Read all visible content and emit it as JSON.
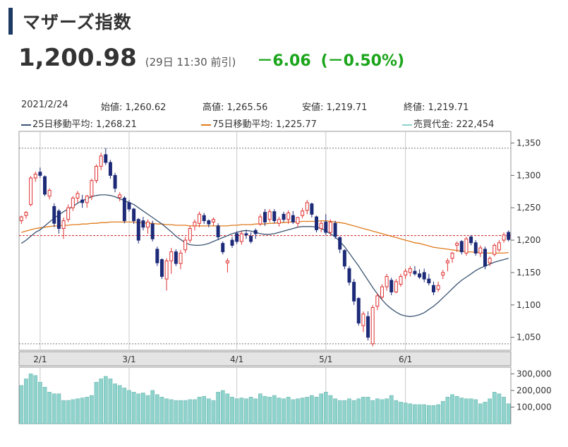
{
  "header": {
    "title": "マザーズ指数",
    "price": "1,200.98",
    "time_note": "(29日 11:30 前引)",
    "change": "－6.06",
    "change_pct": "(－0.50%)"
  },
  "info": {
    "date": "2021/2/24",
    "open_label": "始値: 1,260.62",
    "high_label": "高値: 1,265.56",
    "low_label": "安値: 1,219.71",
    "close_label": "終値: 1,219.71",
    "ma25_label": "25日移動平均: 1,268.21",
    "ma75_label": "75日移動平均: 1,225.77",
    "volume_label": "売買代金: 222,454"
  },
  "colors": {
    "up": "#e03030",
    "down": "#1d2a78",
    "ma25": "#3b5573",
    "ma75": "#e07b1c",
    "volume": "#8fd3cc",
    "volume_stroke": "#5bb0a8",
    "current_line": "#d02020",
    "grid": "#c8c8c8",
    "axis_band": "#e4e4e4"
  },
  "chart_data": {
    "type": "candlestick",
    "price_axis": {
      "min": 1030,
      "max": 1368,
      "ticks": [
        1050,
        1100,
        1150,
        1200,
        1250,
        1300,
        1350
      ],
      "tick_labels": [
        "1,050",
        "1,100",
        "1,150",
        "1,200",
        "1,250",
        "1,300",
        "1,350"
      ]
    },
    "volume_axis": {
      "min": 0,
      "max": 340000,
      "ticks": [
        100000,
        200000,
        300000
      ],
      "tick_labels": [
        "100,000",
        "200,000",
        "300,000"
      ]
    },
    "x_labels": [
      {
        "label": "2/1",
        "index": 4
      },
      {
        "label": "3/1",
        "index": 23
      },
      {
        "label": "4/1",
        "index": 46
      },
      {
        "label": "5/1",
        "index": 65
      },
      {
        "label": "6/1",
        "index": 82
      }
    ],
    "reference_lines": {
      "high": 1342,
      "low": 1040,
      "current": 1207
    },
    "candles": [
      [
        1230,
        1238,
        1225,
        1236
      ],
      [
        1238,
        1245,
        1233,
        1243
      ],
      [
        1255,
        1299,
        1252,
        1296
      ],
      [
        1296,
        1306,
        1290,
        1302
      ],
      [
        1305,
        1312,
        1296,
        1300
      ],
      [
        1298,
        1300,
        1268,
        1271
      ],
      [
        1268,
        1280,
        1263,
        1277
      ],
      [
        1252,
        1257,
        1220,
        1226
      ],
      [
        1245,
        1248,
        1210,
        1218
      ],
      [
        1218,
        1235,
        1202,
        1230
      ],
      [
        1232,
        1255,
        1228,
        1250
      ],
      [
        1250,
        1268,
        1245,
        1265
      ],
      [
        1265,
        1276,
        1258,
        1272
      ],
      [
        1262,
        1270,
        1250,
        1258
      ],
      [
        1258,
        1270,
        1250,
        1268
      ],
      [
        1268,
        1295,
        1262,
        1292
      ],
      [
        1292,
        1317,
        1288,
        1314
      ],
      [
        1314,
        1335,
        1308,
        1330
      ],
      [
        1332,
        1342,
        1316,
        1320
      ],
      [
        1320,
        1324,
        1295,
        1300
      ],
      [
        1300,
        1304,
        1274,
        1280
      ],
      [
        1266,
        1274,
        1260,
        1270
      ],
      [
        1265,
        1268,
        1226,
        1230
      ],
      [
        1258,
        1262,
        1244,
        1248
      ],
      [
        1248,
        1250,
        1225,
        1230
      ],
      [
        1232,
        1234,
        1195,
        1200
      ],
      [
        1230,
        1236,
        1215,
        1220
      ],
      [
        1220,
        1232,
        1210,
        1228
      ],
      [
        1225,
        1230,
        1198,
        1202
      ],
      [
        1186,
        1190,
        1160,
        1165
      ],
      [
        1170,
        1172,
        1140,
        1144
      ],
      [
        1140,
        1172,
        1122,
        1168
      ],
      [
        1168,
        1188,
        1148,
        1182
      ],
      [
        1182,
        1186,
        1160,
        1164
      ],
      [
        1164,
        1185,
        1155,
        1180
      ],
      [
        1185,
        1205,
        1180,
        1200
      ],
      [
        1200,
        1222,
        1196,
        1218
      ],
      [
        1222,
        1232,
        1215,
        1228
      ],
      [
        1226,
        1244,
        1220,
        1240
      ],
      [
        1238,
        1242,
        1225,
        1230
      ],
      [
        1230,
        1232,
        1220,
        1225
      ],
      [
        1228,
        1235,
        1222,
        1232
      ],
      [
        1222,
        1226,
        1200,
        1205
      ],
      [
        1195,
        1198,
        1178,
        1182
      ],
      [
        1165,
        1172,
        1150,
        1168
      ],
      [
        1200,
        1205,
        1188,
        1192
      ],
      [
        1210,
        1214,
        1194,
        1198
      ],
      [
        1198,
        1214,
        1193,
        1210
      ],
      [
        1210,
        1216,
        1202,
        1208
      ],
      [
        1206,
        1212,
        1195,
        1198
      ],
      [
        1215,
        1218,
        1202,
        1210
      ],
      [
        1225,
        1240,
        1222,
        1236
      ],
      [
        1243,
        1248,
        1222,
        1228
      ],
      [
        1232,
        1248,
        1228,
        1244
      ],
      [
        1244,
        1248,
        1226,
        1230
      ],
      [
        1226,
        1236,
        1221,
        1232
      ],
      [
        1240,
        1244,
        1228,
        1232
      ],
      [
        1232,
        1246,
        1225,
        1242
      ],
      [
        1238,
        1245,
        1225,
        1228
      ],
      [
        1226,
        1236,
        1220,
        1235
      ],
      [
        1238,
        1250,
        1234,
        1245
      ],
      [
        1246,
        1262,
        1240,
        1258
      ],
      [
        1256,
        1258,
        1235,
        1240
      ],
      [
        1236,
        1238,
        1212,
        1216
      ],
      [
        1218,
        1230,
        1212,
        1226
      ],
      [
        1228,
        1240,
        1208,
        1212
      ],
      [
        1212,
        1232,
        1208,
        1228
      ],
      [
        1226,
        1230,
        1202,
        1206
      ],
      [
        1204,
        1206,
        1180,
        1186
      ],
      [
        1184,
        1186,
        1155,
        1160
      ],
      [
        1156,
        1160,
        1130,
        1135
      ],
      [
        1135,
        1140,
        1100,
        1106
      ],
      [
        1110,
        1112,
        1068,
        1072
      ],
      [
        1068,
        1090,
        1058,
        1086
      ],
      [
        1082,
        1090,
        1045,
        1050
      ],
      [
        1040,
        1100,
        1036,
        1096
      ],
      [
        1098,
        1118,
        1092,
        1114
      ],
      [
        1112,
        1132,
        1108,
        1128
      ],
      [
        1128,
        1148,
        1122,
        1144
      ],
      [
        1138,
        1142,
        1115,
        1120
      ],
      [
        1120,
        1140,
        1118,
        1136
      ],
      [
        1132,
        1148,
        1128,
        1144
      ],
      [
        1146,
        1156,
        1140,
        1152
      ],
      [
        1150,
        1160,
        1144,
        1156
      ],
      [
        1152,
        1160,
        1145,
        1148
      ],
      [
        1148,
        1155,
        1140,
        1143
      ],
      [
        1150,
        1156,
        1135,
        1140
      ],
      [
        1140,
        1148,
        1130,
        1134
      ],
      [
        1130,
        1136,
        1115,
        1120
      ],
      [
        1124,
        1136,
        1120,
        1130
      ],
      [
        1146,
        1154,
        1140,
        1150
      ],
      [
        1165,
        1172,
        1152,
        1168
      ],
      [
        1172,
        1182,
        1165,
        1180
      ],
      [
        1192,
        1198,
        1182,
        1195
      ],
      [
        1198,
        1200,
        1178,
        1182
      ],
      [
        1180,
        1205,
        1176,
        1202
      ],
      [
        1205,
        1208,
        1192,
        1196
      ],
      [
        1196,
        1200,
        1176,
        1180
      ],
      [
        1180,
        1192,
        1174,
        1188
      ],
      [
        1186,
        1190,
        1155,
        1160
      ],
      [
        1165,
        1175,
        1160,
        1172
      ],
      [
        1178,
        1195,
        1175,
        1192
      ],
      [
        1185,
        1200,
        1182,
        1196
      ],
      [
        1200,
        1212,
        1196,
        1208
      ],
      [
        1212,
        1215,
        1198,
        1201
      ]
    ],
    "ma25": [
      1195,
      1200,
      1206,
      1212,
      1216,
      1222,
      1228,
      1234,
      1239,
      1244,
      1248,
      1252,
      1257,
      1261,
      1264,
      1267,
      1269,
      1270,
      1270,
      1269,
      1267,
      1264,
      1261,
      1258,
      1255,
      1250,
      1245,
      1240,
      1235,
      1230,
      1225,
      1219,
      1213,
      1206,
      1201,
      1196,
      1193,
      1192,
      1192,
      1193,
      1195,
      1198,
      1201,
      1204,
      1207,
      1210,
      1212,
      1214,
      1215,
      1214,
      1212,
      1210,
      1209,
      1209,
      1210,
      1212,
      1214,
      1216,
      1218,
      1220,
      1221,
      1221,
      1221,
      1220,
      1218,
      1214,
      1210,
      1205,
      1198,
      1190,
      1180,
      1170,
      1160,
      1149,
      1138,
      1127,
      1117,
      1108,
      1100,
      1094,
      1089,
      1085,
      1083,
      1082,
      1083,
      1085,
      1088,
      1093,
      1098,
      1104,
      1111,
      1118,
      1125,
      1132,
      1138,
      1143,
      1148,
      1153,
      1157,
      1160,
      1163,
      1166,
      1168,
      1170,
      1172
    ],
    "ma75": [
      1212,
      1214,
      1216,
      1218,
      1219,
      1220,
      1221,
      1222,
      1222,
      1223,
      1223,
      1224,
      1224,
      1225,
      1225,
      1226,
      1226,
      1227,
      1227,
      1228,
      1228,
      1228,
      1228,
      1228,
      1228,
      1227,
      1227,
      1226,
      1226,
      1225,
      1225,
      1224,
      1224,
      1223,
      1223,
      1223,
      1222,
      1222,
      1222,
      1222,
      1222,
      1222,
      1222,
      1222,
      1222,
      1223,
      1223,
      1224,
      1224,
      1224,
      1225,
      1225,
      1225,
      1226,
      1226,
      1227,
      1227,
      1228,
      1228,
      1228,
      1229,
      1229,
      1229,
      1229,
      1230,
      1230,
      1229,
      1228,
      1227,
      1226,
      1224,
      1222,
      1220,
      1218,
      1216,
      1214,
      1212,
      1210,
      1208,
      1206,
      1204,
      1202,
      1200,
      1198,
      1196,
      1195,
      1193,
      1191,
      1189,
      1188,
      1187,
      1186,
      1185,
      1184,
      1183,
      1182,
      1182,
      1181,
      1181,
      1180,
      1180,
      1180,
      1180,
      1180,
      1181
    ],
    "volume": [
      230000,
      270000,
      300000,
      290000,
      250000,
      220000,
      190000,
      180000,
      180000,
      140000,
      140000,
      145000,
      150000,
      155000,
      160000,
      170000,
      250000,
      270000,
      285000,
      270000,
      240000,
      230000,
      215000,
      200000,
      190000,
      180000,
      185000,
      170000,
      200000,
      175000,
      160000,
      150000,
      145000,
      140000,
      140000,
      140000,
      145000,
      145000,
      160000,
      165000,
      150000,
      140000,
      190000,
      200000,
      180000,
      160000,
      150000,
      155000,
      150000,
      160000,
      150000,
      180000,
      165000,
      160000,
      170000,
      155000,
      150000,
      160000,
      145000,
      150000,
      155000,
      160000,
      170000,
      160000,
      180000,
      190000,
      170000,
      150000,
      140000,
      140000,
      150000,
      140000,
      150000,
      160000,
      160000,
      140000,
      150000,
      145000,
      150000,
      170000,
      140000,
      130000,
      125000,
      120000,
      115000,
      115000,
      115000,
      110000,
      110000,
      115000,
      135000,
      160000,
      175000,
      165000,
      155000,
      150000,
      150000,
      145000,
      120000,
      130000,
      150000,
      190000,
      180000,
      160000,
      120000
    ]
  }
}
